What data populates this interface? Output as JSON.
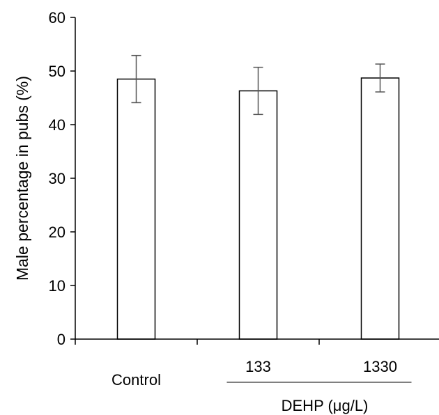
{
  "chart_data": {
    "type": "bar",
    "categories": [
      "Control",
      "133",
      "1330"
    ],
    "values": [
      48.5,
      46.3,
      48.7
    ],
    "errors": [
      4.4,
      4.4,
      2.6
    ],
    "title": "",
    "xlabel": "",
    "ylabel": "Male percentage in pubs (%)",
    "group_label": "DEHP (μg/L)",
    "group_members": [
      "133",
      "1330"
    ],
    "ylim": [
      0,
      60
    ],
    "yticks": [
      0,
      10,
      20,
      30,
      40,
      50,
      60
    ],
    "grid": false,
    "legend": "none",
    "bar_fill": "#ffffff",
    "bar_stroke": "#000000",
    "error_color": "#555555"
  }
}
